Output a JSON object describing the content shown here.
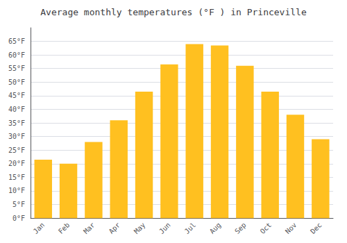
{
  "chart_data": {
    "type": "bar",
    "title": "Average monthly temperatures (°F ) in Princeville",
    "categories": [
      "Jan",
      "Feb",
      "Mar",
      "Apr",
      "May",
      "Jun",
      "Jul",
      "Aug",
      "Sep",
      "Oct",
      "Nov",
      "Dec"
    ],
    "values": [
      21.5,
      20.0,
      28.0,
      36.0,
      46.5,
      56.5,
      64.0,
      63.5,
      56.0,
      46.5,
      38.0,
      29.0
    ],
    "color": "#FFC020",
    "ylim": [
      0,
      70
    ],
    "yticks": [
      {
        "value": 0,
        "label": "0°F"
      },
      {
        "value": 5,
        "label": "5°F"
      },
      {
        "value": 10,
        "label": "10°F"
      },
      {
        "value": 15,
        "label": "15°F"
      },
      {
        "value": 20,
        "label": "20°F"
      },
      {
        "value": 25,
        "label": "25°F"
      },
      {
        "value": 30,
        "label": "30°F"
      },
      {
        "value": 35,
        "label": "35°F"
      },
      {
        "value": 40,
        "label": "40°F"
      },
      {
        "value": 45,
        "label": "45°F"
      },
      {
        "value": 50,
        "label": "50°F"
      },
      {
        "value": 55,
        "label": "55°F"
      },
      {
        "value": 60,
        "label": "60°F"
      },
      {
        "value": 65,
        "label": "65°F"
      }
    ],
    "grid": true
  }
}
